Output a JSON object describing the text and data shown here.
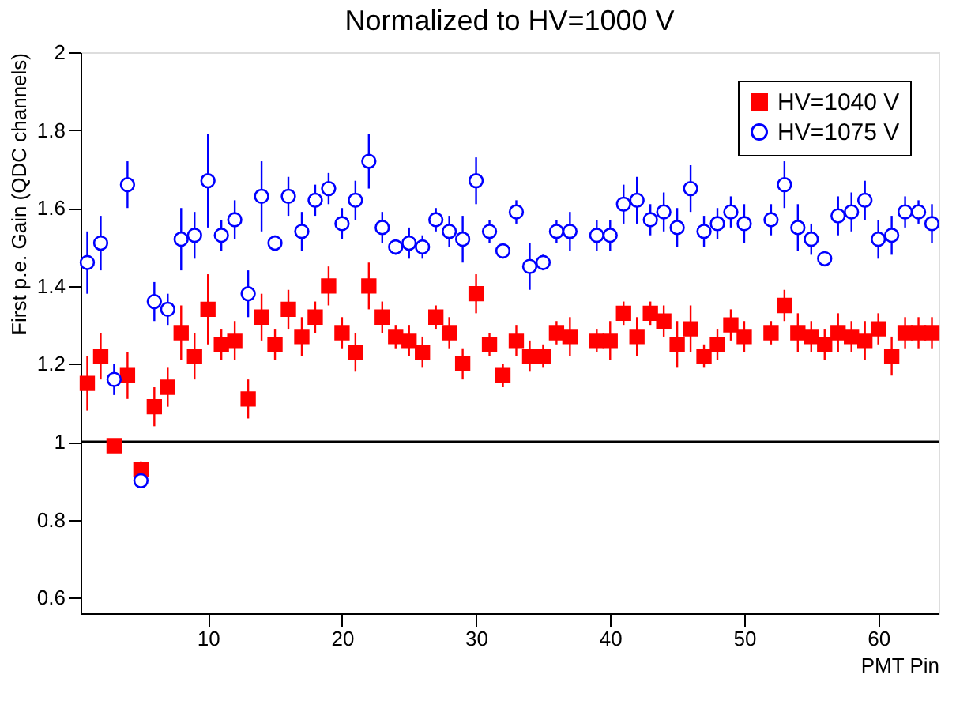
{
  "chart_data": {
    "type": "scatter",
    "title": "Normalized to HV=1000 V",
    "xlabel": "PMT Pin",
    "ylabel": "First p.e. Gain (QDC channels)",
    "x": [
      1,
      2,
      3,
      4,
      5,
      6,
      7,
      8,
      9,
      10,
      11,
      12,
      13,
      14,
      15,
      16,
      17,
      18,
      19,
      20,
      21,
      22,
      23,
      24,
      25,
      26,
      27,
      28,
      29,
      30,
      31,
      32,
      33,
      34,
      35,
      36,
      37,
      38,
      39,
      40,
      41,
      42,
      43,
      44,
      45,
      46,
      47,
      48,
      49,
      50,
      51,
      52,
      53,
      54,
      55,
      56,
      57,
      58,
      59,
      60,
      61,
      62,
      63,
      64
    ],
    "series": [
      {
        "name": "HV=1040 V",
        "color": "#ff0000",
        "marker": "square",
        "values": [
          1.15,
          1.22,
          0.99,
          1.17,
          0.93,
          1.09,
          1.14,
          1.28,
          1.22,
          1.34,
          1.25,
          1.26,
          1.11,
          1.32,
          1.25,
          1.34,
          1.27,
          1.32,
          1.4,
          1.28,
          1.23,
          1.4,
          1.32,
          1.27,
          1.26,
          1.23,
          1.32,
          1.28,
          1.2,
          1.38,
          1.25,
          1.17,
          1.26,
          1.22,
          1.22,
          1.28,
          1.27,
          null,
          1.26,
          1.26,
          1.33,
          1.27,
          1.33,
          1.31,
          1.25,
          1.29,
          1.22,
          1.25,
          1.3,
          1.27,
          null,
          1.28,
          1.35,
          1.28,
          1.27,
          1.25,
          1.28,
          1.27,
          1.26,
          1.29,
          1.22,
          1.28,
          1.28,
          1.28
        ],
        "errors": [
          0.07,
          0.06,
          0.01,
          0.06,
          0.02,
          0.05,
          0.05,
          0.07,
          0.06,
          0.09,
          0.04,
          0.05,
          0.05,
          0.06,
          0.04,
          0.05,
          0.05,
          0.04,
          0.05,
          0.04,
          0.05,
          0.06,
          0.04,
          0.03,
          0.04,
          0.04,
          0.03,
          0.04,
          0.04,
          0.05,
          0.03,
          0.03,
          0.04,
          0.04,
          0.03,
          0.03,
          0.05,
          null,
          0.03,
          0.05,
          0.03,
          0.05,
          0.03,
          0.04,
          0.06,
          0.06,
          0.03,
          0.04,
          0.04,
          0.04,
          null,
          0.03,
          0.04,
          0.05,
          0.04,
          0.04,
          0.05,
          0.04,
          0.05,
          0.04,
          0.05,
          0.04,
          0.04,
          0.04
        ]
      },
      {
        "name": "HV=1075 V",
        "color": "#0000ff",
        "marker": "circle",
        "values": [
          1.46,
          1.51,
          1.16,
          1.66,
          0.9,
          1.36,
          1.34,
          1.52,
          1.53,
          1.67,
          1.53,
          1.57,
          1.38,
          1.63,
          1.51,
          1.63,
          1.54,
          1.62,
          1.65,
          1.56,
          1.62,
          1.72,
          1.55,
          1.5,
          1.51,
          1.5,
          1.57,
          1.54,
          1.52,
          1.67,
          1.54,
          1.49,
          1.59,
          1.45,
          1.46,
          1.54,
          1.54,
          null,
          1.53,
          1.53,
          1.61,
          1.62,
          1.57,
          1.59,
          1.55,
          1.65,
          1.54,
          1.56,
          1.59,
          1.56,
          null,
          1.57,
          1.66,
          1.55,
          1.52,
          1.47,
          1.58,
          1.59,
          1.62,
          1.52,
          1.53,
          1.59,
          1.59,
          1.56
        ],
        "errors": [
          0.08,
          0.07,
          0.04,
          0.06,
          0.01,
          0.05,
          0.04,
          0.08,
          0.06,
          0.12,
          0.04,
          0.05,
          0.06,
          0.09,
          0.02,
          0.05,
          0.05,
          0.04,
          0.04,
          0.04,
          0.05,
          0.07,
          0.04,
          0.02,
          0.04,
          0.03,
          0.03,
          0.04,
          0.06,
          0.06,
          0.03,
          0.02,
          0.03,
          0.06,
          0.02,
          0.03,
          0.05,
          null,
          0.04,
          0.04,
          0.05,
          0.06,
          0.04,
          0.05,
          0.05,
          0.06,
          0.04,
          0.04,
          0.04,
          0.05,
          null,
          0.04,
          0.06,
          0.06,
          0.04,
          0.02,
          0.05,
          0.05,
          0.05,
          0.05,
          0.05,
          0.04,
          0.03,
          0.05
        ]
      }
    ],
    "xlim": [
      0.5,
      64.5
    ],
    "xticks": [
      10,
      20,
      30,
      40,
      50,
      60
    ],
    "ylim": [
      0.56,
      2.0
    ],
    "yticks": [
      0.6,
      0.8,
      {
        "value": 1,
        "label": "1"
      },
      1.2,
      1.4,
      1.6,
      1.8,
      {
        "value": 2,
        "label": "2"
      }
    ],
    "ref_lines": [
      {
        "axis": "y",
        "value": 1,
        "color": "#000000"
      }
    ],
    "grid": false,
    "legend": "top right"
  }
}
